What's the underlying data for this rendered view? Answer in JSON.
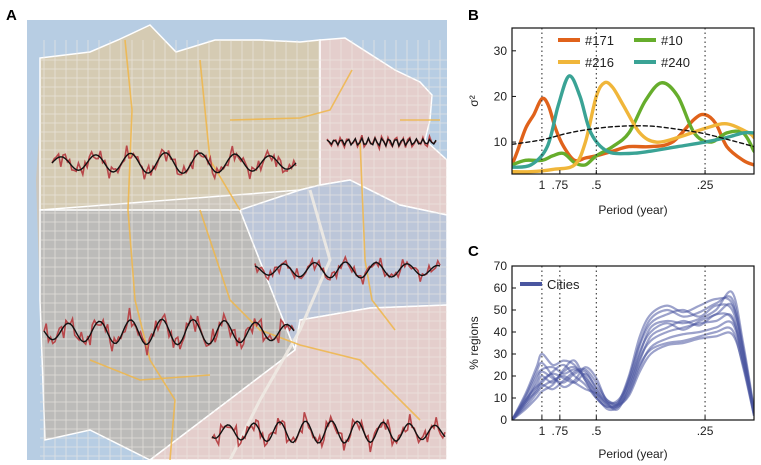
{
  "panels": {
    "a": {
      "letter": "A"
    },
    "b": {
      "letter": "B"
    },
    "c": {
      "letter": "C"
    }
  },
  "colors": {
    "land": "#cdc7bd",
    "water": "#b7cde3",
    "region_tan": "#d6cbb2",
    "region_pink": "#e7cfcf",
    "region_gray": "#b9b9b9",
    "region_blue": "#b8c6de",
    "streets": "#eeeae3",
    "highways": "#f0b648",
    "trace_red": "#b8474a",
    "trace_fit": "#111111",
    "cities": "#4a56a0"
  },
  "map_traces": [
    {
      "name": "north-west-trace",
      "amp": 13,
      "cycles": 7
    },
    {
      "name": "north-east-trace",
      "amp": 5,
      "cycles": 16
    },
    {
      "name": "mission-trace",
      "amp": 10,
      "cycles": 6
    },
    {
      "name": "west-trace",
      "amp": 16,
      "cycles": 8
    },
    {
      "name": "south-trace",
      "amp": 14,
      "cycles": 9
    }
  ],
  "chart_data": [
    {
      "panel": "B",
      "type": "line",
      "xlabel": "Period (year)",
      "ylabel": "σ²",
      "xlim": [
        0.45,
        4.9
      ],
      "ylim": [
        3,
        35
      ],
      "yticks": [
        10,
        20,
        30
      ],
      "xticks": [
        {
          "pos": 1.0,
          "label": "1"
        },
        {
          "pos": 1.33,
          "label": ".75"
        },
        {
          "pos": 2.0,
          "label": ".5"
        },
        {
          "pos": 4.0,
          "label": ".25"
        }
      ],
      "vlines": [
        1.0,
        2.0,
        4.0
      ],
      "legend": "top",
      "series": [
        {
          "name": "#171",
          "color": "#e0621b",
          "x": [
            0.45,
            0.55,
            0.7,
            0.85,
            1.0,
            1.12,
            1.25,
            1.4,
            1.6,
            1.8,
            2.0,
            2.3,
            2.6,
            3.0,
            3.4,
            3.8,
            4.0,
            4.2,
            4.4,
            4.7,
            4.9
          ],
          "y": [
            5,
            8,
            13,
            16,
            19.5,
            18,
            13,
            9,
            6,
            6.5,
            7,
            8,
            9,
            9,
            10,
            15,
            16,
            14,
            9,
            6,
            5
          ]
        },
        {
          "name": "#10",
          "color": "#66ad2c",
          "x": [
            0.45,
            0.7,
            1.0,
            1.2,
            1.4,
            1.6,
            1.8,
            2.0,
            2.3,
            2.6,
            2.9,
            3.2,
            3.5,
            3.8,
            4.1,
            4.4,
            4.7,
            4.9
          ],
          "y": [
            5,
            6,
            6,
            7,
            7.5,
            5.5,
            5,
            7,
            9,
            12,
            19,
            23,
            20,
            12,
            10,
            12,
            12,
            8
          ]
        },
        {
          "name": "#216",
          "color": "#f0b63a",
          "x": [
            0.45,
            0.8,
            1.2,
            1.6,
            1.8,
            2.0,
            2.15,
            2.3,
            2.5,
            2.8,
            3.1,
            3.5,
            4.0,
            4.4,
            4.8,
            4.9
          ],
          "y": [
            3.5,
            3.5,
            4,
            5,
            10,
            20,
            23,
            22,
            18,
            12,
            10,
            11,
            13,
            14,
            12,
            11
          ]
        },
        {
          "name": "#240",
          "color": "#3aa395",
          "x": [
            0.45,
            0.8,
            1.1,
            1.3,
            1.5,
            1.7,
            1.9,
            2.2,
            2.6,
            3.0,
            3.5,
            4.0,
            4.4,
            4.7,
            4.9
          ],
          "y": [
            4.5,
            5,
            9,
            18,
            24.5,
            20,
            12,
            8,
            7.5,
            8,
            9,
            10,
            11,
            12,
            12
          ]
        },
        {
          "name": "",
          "color": "#111111",
          "dashed": true,
          "x": [
            0.45,
            1.0,
            1.5,
            2.0,
            2.5,
            3.0,
            3.5,
            4.0,
            4.5,
            4.9
          ],
          "y": [
            9.5,
            10.5,
            12,
            13,
            13.5,
            13.5,
            12.8,
            11.8,
            10.3,
            9
          ]
        }
      ]
    },
    {
      "panel": "C",
      "type": "line",
      "xlabel": "Period (year)",
      "ylabel": "% regions",
      "xlim": [
        0.45,
        4.9
      ],
      "ylim": [
        0,
        70
      ],
      "yticks": [
        0,
        10,
        20,
        30,
        40,
        50,
        60,
        70
      ],
      "xticks": [
        {
          "pos": 1.0,
          "label": "1"
        },
        {
          "pos": 1.33,
          "label": ".75"
        },
        {
          "pos": 2.0,
          "label": ".5"
        },
        {
          "pos": 4.0,
          "label": ".25"
        }
      ],
      "vlines": [
        1.0,
        1.33,
        2.0,
        4.0
      ],
      "legend": "top-left",
      "legend_label": "Cities",
      "x": [
        0.45,
        0.7,
        0.9,
        1.0,
        1.2,
        1.4,
        1.6,
        1.8,
        2.0,
        2.2,
        2.4,
        2.6,
        2.8,
        3.0,
        3.3,
        3.6,
        3.9,
        4.2,
        4.5,
        4.7,
        4.9
      ],
      "series": [
        {
          "values": [
            0,
            12,
            24,
            30,
            25,
            27,
            25,
            18,
            10,
            6,
            8,
            20,
            38,
            48,
            52,
            49,
            52,
            55,
            53,
            32,
            4
          ]
        },
        {
          "values": [
            0,
            10,
            20,
            23,
            24,
            21,
            23,
            20,
            12,
            7,
            7,
            18,
            34,
            44,
            48,
            50,
            47,
            52,
            50,
            30,
            3
          ]
        },
        {
          "values": [
            0,
            8,
            18,
            22,
            19,
            17,
            21,
            22,
            14,
            8,
            9,
            17,
            30,
            42,
            45,
            44,
            46,
            50,
            58,
            35,
            5
          ]
        },
        {
          "values": [
            0,
            7,
            14,
            18,
            21,
            19,
            17,
            21,
            15,
            9,
            8,
            15,
            27,
            38,
            42,
            45,
            43,
            48,
            46,
            28,
            3
          ]
        },
        {
          "values": [
            0,
            9,
            16,
            20,
            17,
            23,
            27,
            18,
            11,
            5,
            6,
            14,
            28,
            36,
            40,
            42,
            44,
            45,
            47,
            26,
            2
          ]
        },
        {
          "values": [
            0,
            6,
            12,
            15,
            18,
            20,
            17,
            14,
            12,
            7,
            6,
            12,
            24,
            33,
            37,
            39,
            40,
            42,
            44,
            27,
            4
          ]
        },
        {
          "values": [
            0,
            11,
            22,
            26,
            20,
            15,
            18,
            24,
            19,
            8,
            5,
            16,
            31,
            40,
            44,
            41,
            45,
            48,
            52,
            31,
            3
          ]
        },
        {
          "values": [
            0,
            5,
            10,
            13,
            16,
            22,
            24,
            19,
            13,
            8,
            7,
            13,
            25,
            32,
            35,
            36,
            38,
            40,
            41,
            24,
            2
          ]
        },
        {
          "values": [
            0,
            9,
            15,
            17,
            22,
            25,
            20,
            16,
            10,
            6,
            7,
            19,
            35,
            46,
            50,
            47,
            49,
            53,
            55,
            33,
            4
          ]
        },
        {
          "values": [
            0,
            8,
            13,
            16,
            14,
            18,
            22,
            23,
            17,
            9,
            7,
            11,
            22,
            30,
            34,
            35,
            37,
            38,
            39,
            25,
            3
          ]
        }
      ]
    }
  ]
}
